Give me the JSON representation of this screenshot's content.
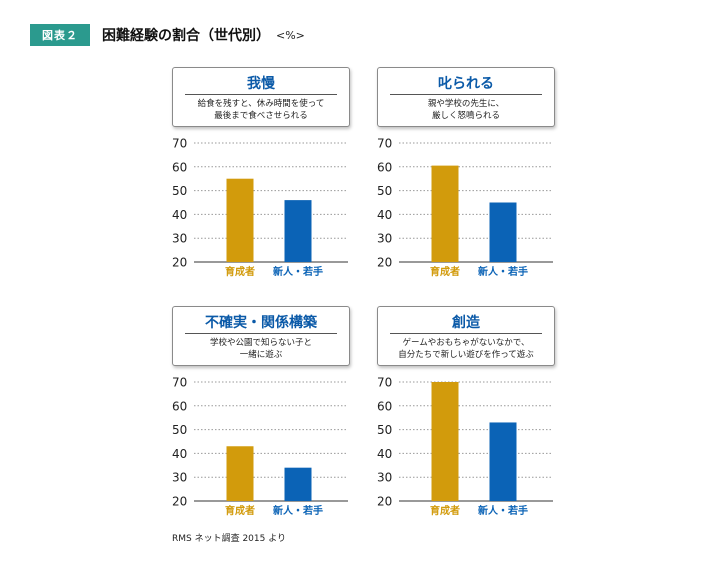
{
  "figure": {
    "badge": "図表２",
    "title": "困難経験の割合（世代別）",
    "unit": "<%>",
    "source": "RMS ネット調査 2015 より"
  },
  "colors": {
    "育成者": "#d29b0c",
    "新人・若手": "#0b63b6",
    "title": "#0b5aa8",
    "badge": "#2b9a8e"
  },
  "chart_data": [
    {
      "type": "bar",
      "title": "我慢",
      "description": [
        "給食を残すと、休み時間を使って",
        "最後まで食べさせられる"
      ],
      "categories": [
        "育成者",
        "新人・若手"
      ],
      "values": [
        55,
        46
      ],
      "ylim": [
        20,
        70
      ],
      "yticks": [
        20,
        30,
        40,
        50,
        60,
        70
      ],
      "grid": true
    },
    {
      "type": "bar",
      "title": "叱られる",
      "description": [
        "親や学校の先生に、",
        "厳しく怒鳴られる"
      ],
      "categories": [
        "育成者",
        "新人・若手"
      ],
      "values": [
        60.5,
        45
      ],
      "ylim": [
        20,
        70
      ],
      "yticks": [
        20,
        30,
        40,
        50,
        60,
        70
      ],
      "grid": true
    },
    {
      "type": "bar",
      "title": "不確実・関係構築",
      "description": [
        "学校や公園で知らない子と",
        "一緒に遊ぶ"
      ],
      "categories": [
        "育成者",
        "新人・若手"
      ],
      "values": [
        43,
        34
      ],
      "ylim": [
        20,
        70
      ],
      "yticks": [
        20,
        30,
        40,
        50,
        60,
        70
      ],
      "grid": true
    },
    {
      "type": "bar",
      "title": "創造",
      "description": [
        "ゲームやおもちゃがないなかで、",
        "自分たちで新しい遊びを作って遊ぶ"
      ],
      "categories": [
        "育成者",
        "新人・若手"
      ],
      "values": [
        70,
        53
      ],
      "ylim": [
        20,
        70
      ],
      "yticks": [
        20,
        30,
        40,
        50,
        60,
        70
      ],
      "grid": true
    }
  ]
}
